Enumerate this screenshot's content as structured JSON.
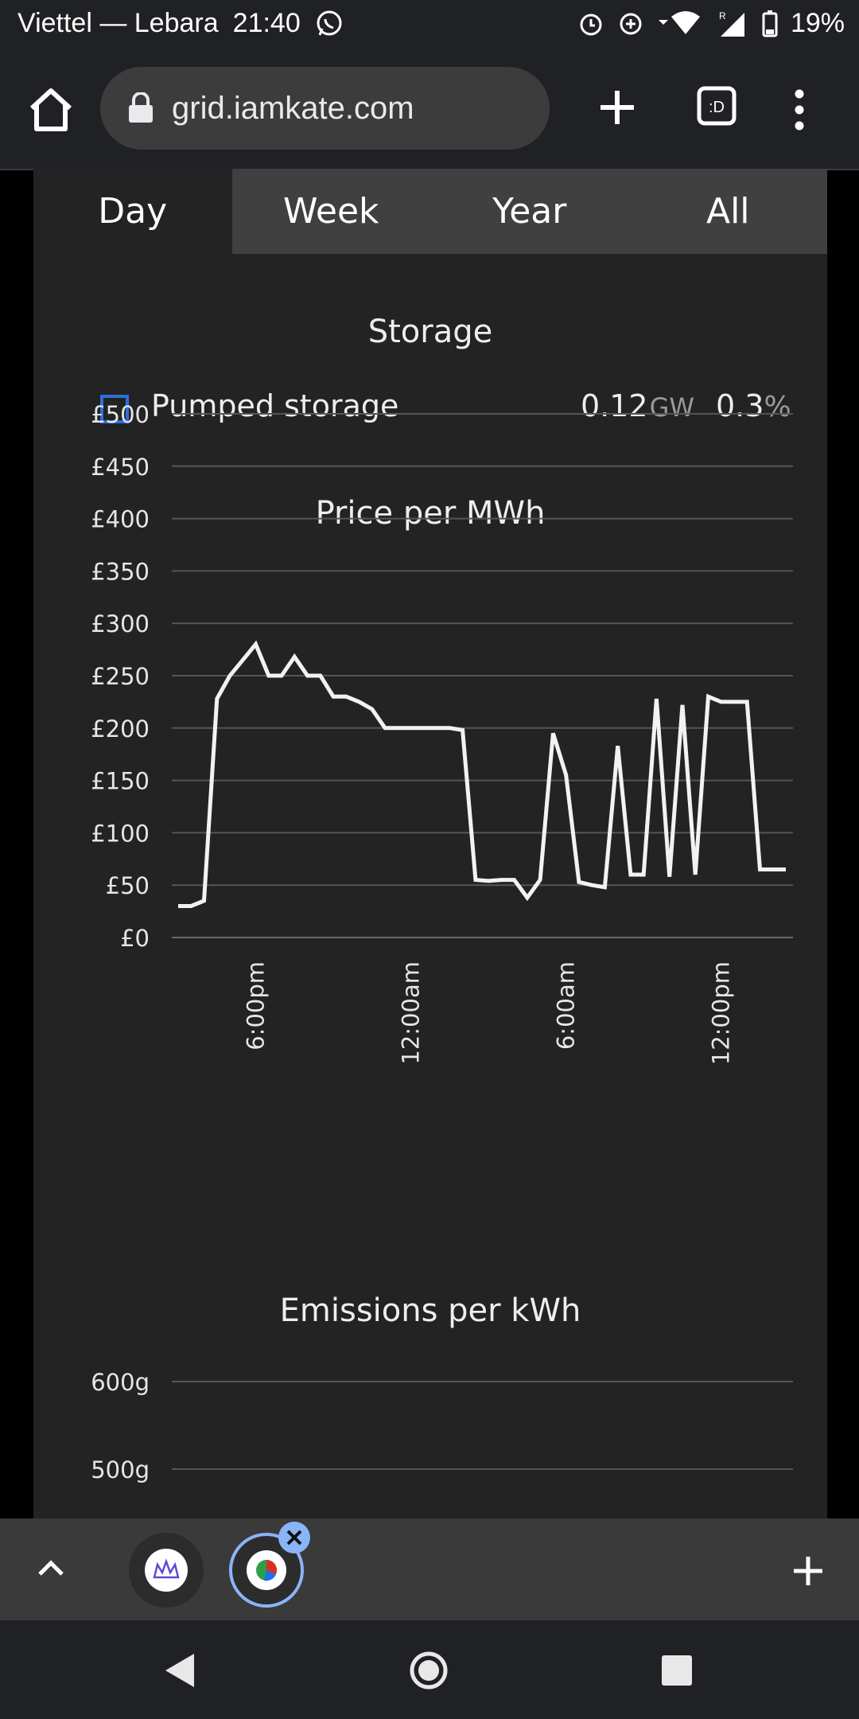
{
  "status_bar": {
    "carrier": "Viettel — Lebara",
    "time": "21:40",
    "battery": "19%",
    "icons": [
      "whatsapp-icon",
      "alarm-icon",
      "data-saver-icon",
      "wifi-icon",
      "signal-icon",
      "battery-icon"
    ]
  },
  "browser": {
    "url": "grid.iamkate.com",
    "tab_switcher_label": ":D"
  },
  "range_tabs": {
    "items": [
      {
        "label": "Day",
        "active": true
      },
      {
        "label": "Week",
        "active": false
      },
      {
        "label": "Year",
        "active": false
      },
      {
        "label": "All",
        "active": false
      }
    ]
  },
  "storage": {
    "title": "Storage",
    "item_label": "Pumped storage",
    "value": "0.12",
    "unit": "GW",
    "percent": "0.3",
    "percent_sign": "%",
    "checkbox_color": "#2e6fd8"
  },
  "chart_data": [
    {
      "type": "line",
      "title": "Price per MWh",
      "xlabel": "",
      "ylabel": "",
      "ylim": [
        0,
        500
      ],
      "y_ticks": [
        "£0",
        "£50",
        "£100",
        "£150",
        "£200",
        "£250",
        "£300",
        "£350",
        "£400",
        "£450",
        "£500"
      ],
      "x_ticks": [
        {
          "label": "6:00pm",
          "x": 6
        },
        {
          "label": "12:00am",
          "x": 18
        },
        {
          "label": "6:00am",
          "x": 30
        },
        {
          "label": "12:00pm",
          "x": 42
        }
      ],
      "grid": true,
      "line_color": "#f2f2f2",
      "x": [
        0,
        1,
        2,
        3,
        4,
        5,
        6,
        7,
        8,
        9,
        10,
        11,
        12,
        13,
        14,
        15,
        16,
        17,
        18,
        19,
        20,
        21,
        22,
        23,
        24,
        25,
        26,
        27,
        28,
        29,
        30,
        31,
        32,
        33,
        34,
        35,
        36,
        37,
        38,
        39,
        40,
        41,
        42,
        43,
        44,
        45,
        46,
        47
      ],
      "values": [
        30,
        30,
        35,
        228,
        250,
        265,
        280,
        250,
        250,
        268,
        250,
        250,
        230,
        230,
        225,
        218,
        200,
        200,
        200,
        200,
        200,
        200,
        198,
        55,
        54,
        55,
        55,
        38,
        55,
        195,
        155,
        53,
        50,
        48,
        183,
        60,
        60,
        228,
        58,
        222,
        60,
        230,
        225,
        225,
        225,
        65,
        65,
        65
      ]
    },
    {
      "type": "line",
      "title": "Emissions per kWh",
      "y_ticks": [
        "500g",
        "600g"
      ],
      "grid": true
    }
  ]
}
